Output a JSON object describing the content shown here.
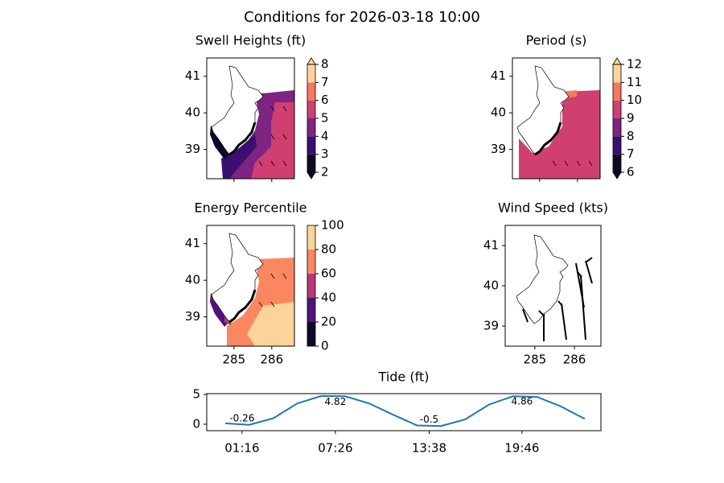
{
  "title": "Conditions for 2026-03-18 10:00",
  "chart_data": [
    {
      "type": "map",
      "title": "Swell Heights (ft)",
      "xlim": [
        284.28,
        286.6
      ],
      "ylim": [
        38.2,
        41.5
      ],
      "xticks": [
        285,
        286
      ],
      "yticks": [
        39,
        40,
        41
      ],
      "show_xticklabels": false,
      "colorbar": {
        "bounds": [
          2,
          3,
          4,
          5,
          6,
          7,
          8
        ],
        "colors": [
          "#0d0829",
          "#3b0f70",
          "#7e2482",
          "#cf4070",
          "#f5795f",
          "#fdd49e"
        ],
        "extend": "both"
      }
    },
    {
      "type": "map",
      "title": "Period (s)",
      "xlim": [
        284.28,
        286.6
      ],
      "ylim": [
        38.2,
        41.5
      ],
      "xticks": [
        285,
        286
      ],
      "yticks": [
        39,
        40,
        41
      ],
      "show_xticklabels": false,
      "colorbar": {
        "bounds": [
          6,
          7,
          8,
          9,
          10,
          11,
          12
        ],
        "colors": [
          "#0d0829",
          "#3b0f70",
          "#7e2482",
          "#cf4070",
          "#f5795f",
          "#fdd49e"
        ],
        "extend": "both"
      }
    },
    {
      "type": "map",
      "title": "Energy Percentile",
      "xlim": [
        284.28,
        286.6
      ],
      "ylim": [
        38.2,
        41.5
      ],
      "xticks": [
        285,
        286
      ],
      "yticks": [
        39,
        40,
        41
      ],
      "show_xticklabels": true,
      "colorbar": {
        "bounds": [
          0,
          20,
          40,
          60,
          80,
          100
        ],
        "colors": [
          "#0d0829",
          "#51127c",
          "#b73779",
          "#fb8761",
          "#fcd39a"
        ],
        "extend": "neither"
      }
    },
    {
      "type": "map",
      "title": "Wind Speed (kts)",
      "xlim": [
        284.25,
        286.67
      ],
      "ylim": [
        38.5,
        41.5
      ],
      "xticks": [
        285,
        286
      ],
      "yticks": [
        39,
        40,
        41
      ],
      "show_xticklabels": true
    },
    {
      "type": "line",
      "title": "Tide (ft)",
      "color": "#1f77b4",
      "x": [
        "00:10",
        "01:45",
        "03:20",
        "04:55",
        "06:30",
        "08:05",
        "09:40",
        "11:15",
        "12:50",
        "14:25",
        "16:00",
        "17:35",
        "19:10",
        "20:45",
        "22:20",
        "23:55"
      ],
      "values": [
        0.15,
        -0.1,
        1.0,
        3.5,
        4.75,
        4.7,
        3.5,
        1.6,
        -0.2,
        -0.3,
        0.8,
        3.3,
        4.7,
        4.6,
        3.0,
        0.9
      ],
      "xlim": [
        "-01:04",
        "24:59"
      ],
      "xticks": [
        "01:16",
        "07:26",
        "13:38",
        "19:46"
      ],
      "ylim": [
        -1.08,
        5.14
      ],
      "yticks": [
        0,
        5
      ],
      "annotations": [
        {
          "x": "01:16",
          "value": -0.26
        },
        {
          "x": "07:26",
          "value": 4.82
        },
        {
          "x": "13:38",
          "value": -0.5
        },
        {
          "x": "19:46",
          "value": 4.86
        }
      ]
    }
  ]
}
